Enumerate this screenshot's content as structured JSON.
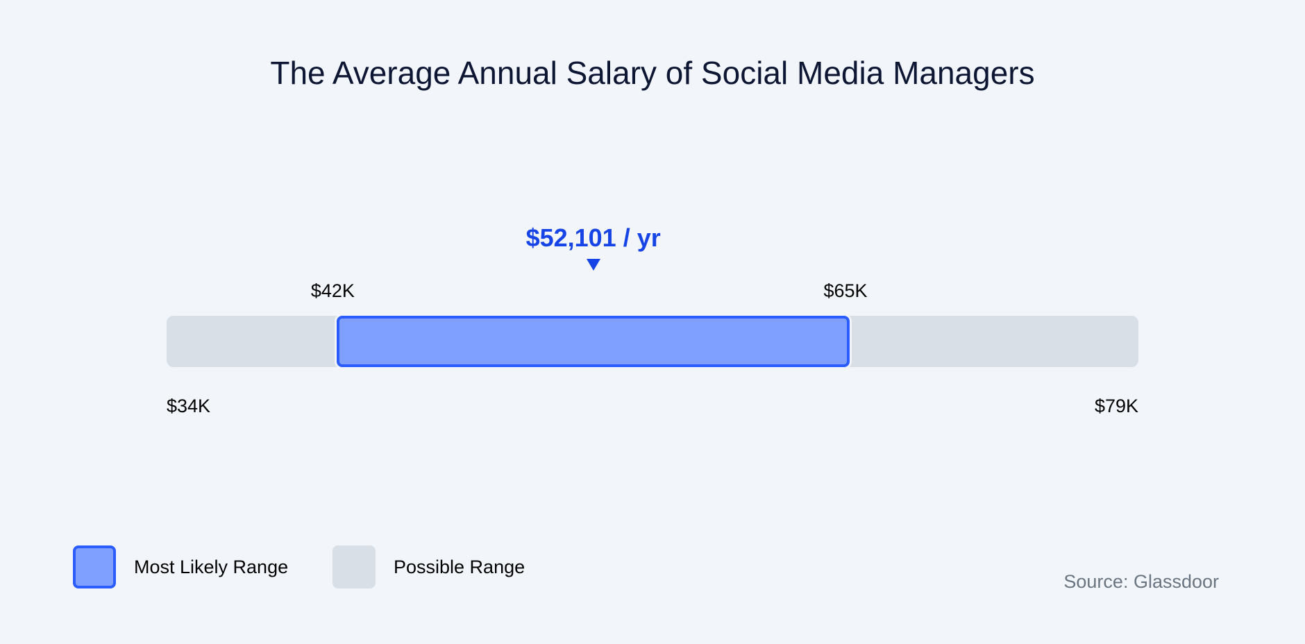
{
  "chart_data": {
    "type": "range",
    "title": "The Average Annual Salary of Social Media Managers",
    "unit": "USD per year",
    "possible_range": {
      "min": 34000,
      "max": 79000,
      "min_label": "$34K",
      "max_label": "$79K"
    },
    "most_likely_range": {
      "min": 42000,
      "max": 65000,
      "min_label": "$42K",
      "max_label": "$65K"
    },
    "average": {
      "value": 52101,
      "label": "$52,101 / yr"
    },
    "legend": [
      "Most Likely Range",
      "Possible Range"
    ],
    "legend_placement": "bottom-left",
    "source": "Source: Glassdoor"
  },
  "colors": {
    "likely_fill": "#7fa0ff",
    "likely_border": "#2a5cff",
    "possible": "#d8dfe7",
    "accent": "#1644e6"
  }
}
